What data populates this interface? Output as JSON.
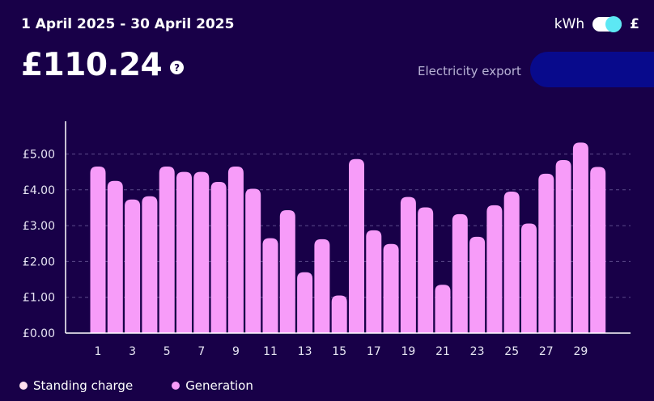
{
  "header": {
    "date_range": "1 April 2025 - 30 April 2025",
    "total": "£110.24",
    "help_symbol": "?",
    "meter_label": "Electricity export"
  },
  "unit_toggle": {
    "left_label": "kWh",
    "right_label": "£",
    "selected": "£"
  },
  "colors": {
    "background": "#180048",
    "bar": "#f79cf9",
    "toggle_knob": "#5de8f4",
    "standing_charge": "#ffe0f0"
  },
  "chart_data": {
    "type": "bar",
    "categories": [
      1,
      2,
      3,
      4,
      5,
      6,
      7,
      8,
      9,
      10,
      11,
      12,
      13,
      14,
      15,
      16,
      17,
      18,
      19,
      20,
      21,
      22,
      23,
      24,
      25,
      26,
      27,
      28,
      29,
      30
    ],
    "x_tick_labels": [
      "1",
      "3",
      "5",
      "7",
      "9",
      "11",
      "13",
      "15",
      "17",
      "19",
      "21",
      "23",
      "25",
      "27",
      "29"
    ],
    "series": [
      {
        "name": "Generation",
        "values": [
          4.65,
          4.25,
          3.73,
          3.82,
          4.65,
          4.5,
          4.5,
          4.22,
          4.65,
          4.03,
          2.65,
          3.43,
          1.7,
          2.62,
          1.05,
          4.86,
          2.87,
          2.49,
          3.8,
          3.51,
          1.35,
          3.32,
          2.69,
          3.57,
          3.95,
          3.06,
          4.45,
          4.83,
          5.32,
          4.64
        ]
      }
    ],
    "y_ticks": [
      "£0.00",
      "£1.00",
      "£2.00",
      "£3.00",
      "£4.00",
      "£5.00"
    ],
    "ylim": [
      0,
      5.9
    ],
    "grid": "horizontal dashed",
    "legend": [
      {
        "name": "Standing charge"
      },
      {
        "name": "Generation"
      }
    ],
    "legend_position": "bottom-left"
  }
}
